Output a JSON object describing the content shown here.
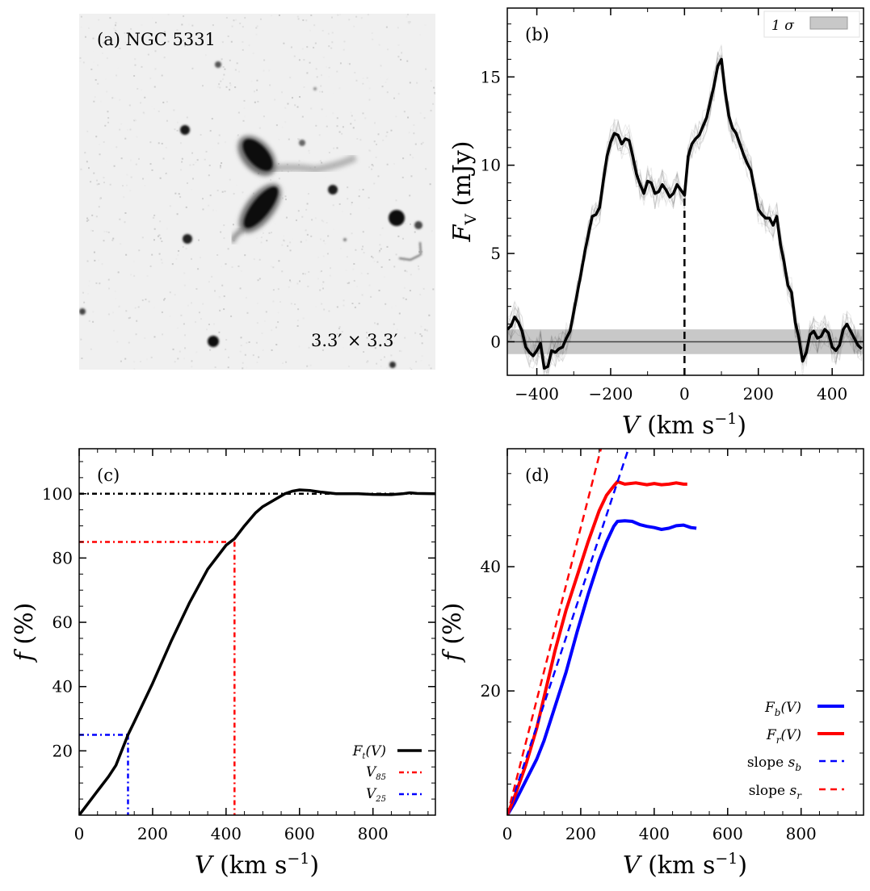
{
  "chart_data": [
    {
      "panel": "a",
      "type": "image",
      "tag": "(a) NGC 5331",
      "scale_label": "3.3′ × 3.3′"
    },
    {
      "panel": "b",
      "type": "line",
      "tag": "(b)",
      "xlabel": "V (km s⁻¹)",
      "ylabel": "F_V (mJy)",
      "xlim": [
        -480,
        485
      ],
      "ylim": [
        -1.9,
        18.9
      ],
      "xticks": [
        -400,
        -200,
        0,
        200,
        400
      ],
      "xtick_labels": [
        "−400",
        "−200",
        "0",
        "200",
        "400"
      ],
      "yticks": [
        0,
        5,
        10,
        15
      ],
      "ytick_labels": [
        "0",
        "5",
        "10",
        "15"
      ],
      "band": {
        "label": "1 σ",
        "y0": -0.7,
        "y1": 0.7,
        "color": "#c8c8c8"
      },
      "vline_x": 0,
      "vline_to": 8.2,
      "series": [
        {
          "name": "F_V",
          "color": "#000000",
          "x": [
            -480,
            -470,
            -460,
            -450,
            -440,
            -430,
            -420,
            -410,
            -400,
            -390,
            -380,
            -370,
            -360,
            -350,
            -340,
            -330,
            -320,
            -310,
            -300,
            -290,
            -280,
            -270,
            -260,
            -250,
            -240,
            -230,
            -220,
            -210,
            -200,
            -190,
            -180,
            -170,
            -160,
            -150,
            -140,
            -130,
            -120,
            -110,
            -100,
            -90,
            -80,
            -70,
            -60,
            -50,
            -40,
            -30,
            -20,
            -10,
            0,
            10,
            20,
            30,
            40,
            50,
            60,
            70,
            80,
            90,
            100,
            110,
            120,
            130,
            140,
            150,
            160,
            170,
            180,
            190,
            200,
            210,
            220,
            230,
            240,
            250,
            260,
            270,
            280,
            290,
            300,
            310,
            320,
            330,
            340,
            350,
            360,
            370,
            380,
            390,
            400,
            410,
            420,
            430,
            440,
            450,
            460,
            470,
            480
          ],
          "y": [
            0.7,
            0.9,
            1.4,
            1.1,
            0.6,
            -0.3,
            -0.6,
            -0.8,
            -0.5,
            -0.1,
            -1.5,
            -1.4,
            -0.5,
            -0.6,
            -0.4,
            -0.3,
            0.2,
            0.6,
            1.7,
            2.8,
            3.9,
            5.1,
            6.1,
            7.1,
            7.2,
            7.6,
            9.1,
            10.5,
            11.3,
            11.8,
            11.7,
            11.2,
            11.5,
            11.4,
            10.5,
            9.5,
            8.9,
            8.4,
            9.1,
            9.0,
            8.4,
            8.5,
            8.9,
            8.6,
            8.2,
            8.4,
            8.9,
            8.6,
            8.3,
            10.5,
            11.2,
            11.5,
            11.7,
            12.2,
            12.7,
            13.6,
            14.5,
            15.6,
            16.0,
            14.2,
            12.8,
            12.1,
            11.8,
            11.2,
            10.6,
            10.1,
            9.7,
            8.6,
            7.5,
            7.2,
            7.0,
            7.0,
            6.6,
            7.1,
            5.5,
            4.5,
            3.2,
            2.8,
            1.1,
            0.2,
            -1.1,
            -0.6,
            0.4,
            0.6,
            0.2,
            0.3,
            0.7,
            0.5,
            -0.3,
            -0.5,
            -0.2,
            0.7,
            1.0,
            0.6,
            0.2,
            -0.2,
            -0.4
          ]
        }
      ]
    },
    {
      "panel": "c",
      "type": "line",
      "tag": "(c)",
      "xlabel": "V (km s⁻¹)",
      "ylabel": "f (%)",
      "xlim": [
        0,
        970
      ],
      "ylim": [
        0,
        114
      ],
      "xticks": [
        0,
        200,
        400,
        600,
        800
      ],
      "xtick_labels": [
        "0",
        "200",
        "400",
        "600",
        "800"
      ],
      "yticks": [
        20,
        40,
        60,
        80,
        100
      ],
      "ytick_labels": [
        "20",
        "40",
        "60",
        "80",
        "100"
      ],
      "reference_lines": [
        {
          "name": "F_t = 100%",
          "y": 100,
          "color": "#000000"
        },
        {
          "name": "V85",
          "y": 85,
          "x": 423,
          "color": "#ff0000"
        },
        {
          "name": "V25",
          "y": 25,
          "x": 133,
          "color": "#0000ff"
        }
      ],
      "series": [
        {
          "name": "F_t(V)",
          "color": "#000000",
          "x": [
            0,
            20,
            50,
            80,
            100,
            133,
            150,
            200,
            250,
            300,
            350,
            400,
            423,
            450,
            480,
            500,
            530,
            560,
            580,
            600,
            630,
            660,
            700,
            760,
            800,
            850,
            880,
            900,
            920,
            970
          ],
          "y": [
            0,
            3,
            7.5,
            12,
            15.5,
            25,
            29,
            41,
            54,
            66,
            76.5,
            84,
            86,
            90,
            94,
            96,
            98,
            100,
            100.8,
            101.2,
            101,
            100.5,
            100,
            100,
            99.8,
            99.7,
            100,
            100.3,
            100.1,
            100
          ]
        }
      ],
      "legend": [
        {
          "label": "F_t(V)",
          "style": "solid",
          "color": "#000000"
        },
        {
          "label": "V_85",
          "style": "dashdot",
          "color": "#ff0000"
        },
        {
          "label": "V_25",
          "style": "dashdot",
          "color": "#0000ff"
        }
      ]
    },
    {
      "panel": "d",
      "type": "line",
      "tag": "(d)",
      "xlabel": "V (km s⁻¹)",
      "ylabel": "f (%)",
      "xlim": [
        0,
        970
      ],
      "ylim": [
        0,
        59
      ],
      "xticks": [
        0,
        200,
        400,
        600,
        800
      ],
      "xtick_labels": [
        "0",
        "200",
        "400",
        "600",
        "800"
      ],
      "yticks": [
        20,
        40
      ],
      "ytick_labels": [
        "20",
        "40"
      ],
      "series": [
        {
          "name": "F_b(V)",
          "color": "#0000ff",
          "style": "solid",
          "x": [
            0,
            20,
            50,
            80,
            100,
            130,
            160,
            190,
            220,
            250,
            270,
            290,
            300,
            320,
            340,
            360,
            380,
            400,
            420,
            440,
            460,
            480,
            500,
            515
          ],
          "y": [
            0,
            2,
            5.5,
            9,
            12,
            17.5,
            23,
            29.5,
            35.5,
            41,
            44,
            46.5,
            47.3,
            47.4,
            47.3,
            46.8,
            46.5,
            46.3,
            46,
            46.2,
            46.6,
            46.7,
            46.3,
            46.2
          ]
        },
        {
          "name": "F_r(V)",
          "color": "#ff0000",
          "style": "solid",
          "x": [
            0,
            20,
            50,
            80,
            100,
            130,
            160,
            190,
            220,
            250,
            270,
            290,
            300,
            320,
            350,
            380,
            400,
            420,
            440,
            460,
            480,
            490
          ],
          "y": [
            0,
            3,
            8,
            14,
            19,
            26.5,
            33,
            38.5,
            44,
            49,
            51.5,
            53,
            53.7,
            53.3,
            53.5,
            53.2,
            53.4,
            53.2,
            53.3,
            53.5,
            53.3,
            53.3
          ]
        },
        {
          "name": "slope s_b",
          "color": "#0000ff",
          "style": "dashed",
          "x": [
            0,
            330
          ],
          "y": [
            0,
            59
          ]
        },
        {
          "name": "slope s_r",
          "color": "#ff0000",
          "style": "dashed",
          "x": [
            0,
            255
          ],
          "y": [
            0,
            59
          ]
        }
      ],
      "legend": [
        {
          "label": "F_b(V)",
          "style": "solid",
          "color": "#0000ff"
        },
        {
          "label": "F_r(V)",
          "style": "solid",
          "color": "#ff0000"
        },
        {
          "label": "slope s_b",
          "style": "dashed",
          "color": "#0000ff"
        },
        {
          "label": "slope s_r",
          "style": "dashed",
          "color": "#ff0000"
        }
      ]
    }
  ]
}
